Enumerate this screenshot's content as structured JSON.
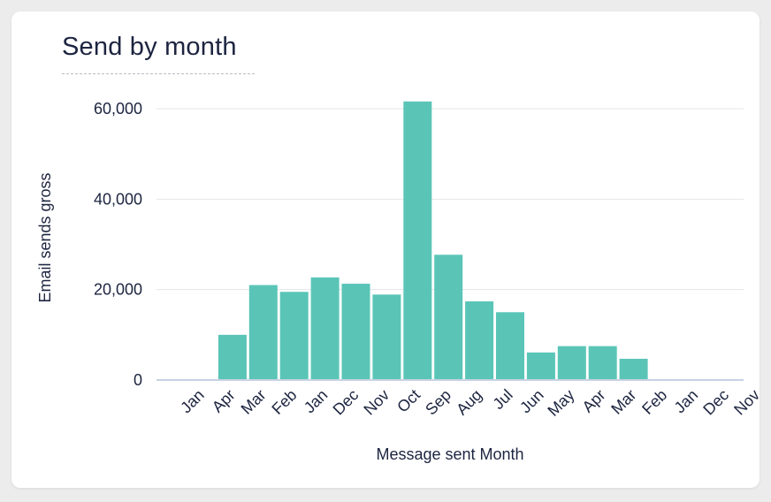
{
  "card": {
    "title": "Send by month"
  },
  "colors": {
    "bar": "#5ac5b7",
    "grid": "#e3e5e9",
    "axis": "#c9d2e3",
    "text": "#1c2440"
  },
  "chart_data": {
    "type": "bar",
    "title": "Send by month",
    "xlabel": "Message sent Month",
    "ylabel": "Email sends gross",
    "ylim": [
      0,
      60000
    ],
    "yticks": [
      0,
      20000,
      40000,
      60000
    ],
    "ytick_labels": [
      "0",
      "20,000",
      "40,000",
      "60,000"
    ],
    "grid": true,
    "categories": [
      "Jan",
      "Apr",
      "Mar",
      "Feb",
      "Jan",
      "Dec",
      "Nov",
      "Oct",
      "Sep",
      "Aug",
      "Jul",
      "Jun",
      "May",
      "Apr",
      "Mar",
      "Feb",
      "Jan",
      "Dec",
      "Nov"
    ],
    "series": [
      {
        "name": "Email sends gross",
        "values": [
          0,
          10000,
          21000,
          19500,
          22700,
          21300,
          18900,
          61600,
          27700,
          17400,
          15000,
          6100,
          7500,
          7500,
          4700,
          0,
          0,
          0,
          0
        ]
      }
    ]
  }
}
